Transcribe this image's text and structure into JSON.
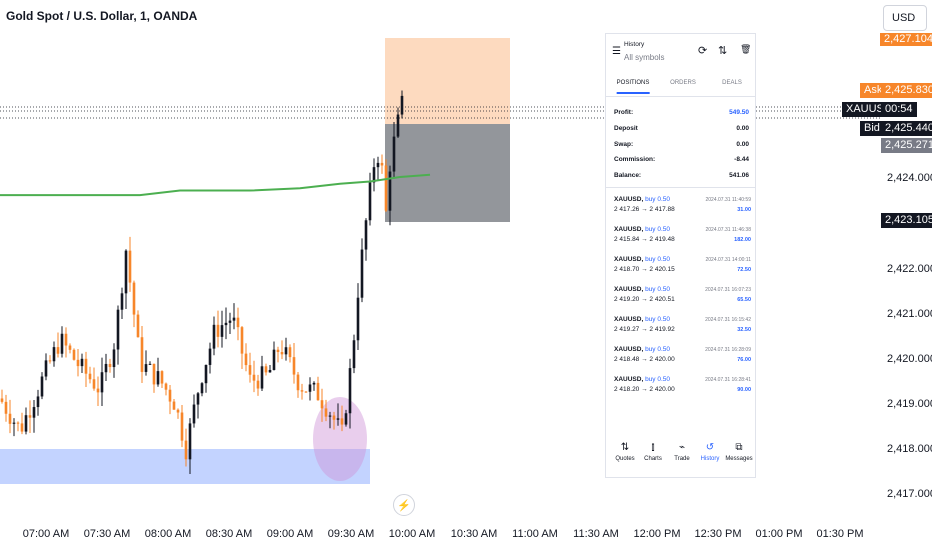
{
  "header": {
    "symbol_title": "Gold Spot / U.S. Dollar, 1, OANDA",
    "currency": "USD"
  },
  "price_axis": {
    "labels": [
      "2,424.000",
      "2,422.000",
      "2,421.000",
      "2,420.000",
      "2,419.000",
      "2,418.000",
      "2,417.000"
    ],
    "tags": {
      "top_tp": "2,427.104",
      "ask_label": "Ask",
      "ask": "2,425.830",
      "symbol": "XAUUSD",
      "countdown": "00:54",
      "bid_label": "Bid",
      "bid": "2,425.440",
      "last": "2,425.271",
      "sl": "2,423.105"
    }
  },
  "time_axis": {
    "labels": [
      "07:00 AM",
      "07:30 AM",
      "08:00 AM",
      "08:30 AM",
      "09:00 AM",
      "09:30 AM",
      "10:00 AM",
      "10:30 AM",
      "11:00 AM",
      "11:30 AM",
      "12:00 PM",
      "12:30 PM",
      "01:00 PM",
      "01:30 PM"
    ]
  },
  "colors": {
    "up": "#131722",
    "down": "#f7862a",
    "ma": "#4caf50",
    "zone": "#2962ff",
    "tp_zone": "#f7862a",
    "sl_zone": "#3b3f48"
  },
  "chart_data": {
    "type": "candlestick",
    "symbol": "Gold Spot / U.S. Dollar",
    "interval": "1",
    "y_range": [
      2416.8,
      2427.3
    ],
    "x_range": [
      "06:47 AM",
      "01:46 PM"
    ],
    "moving_average": [
      [
        0,
        2423.6
      ],
      [
        140,
        2423.6
      ],
      [
        180,
        2423.7
      ],
      [
        250,
        2423.7
      ],
      [
        300,
        2423.75
      ],
      [
        340,
        2423.85
      ],
      [
        370,
        2423.9
      ],
      [
        400,
        2424.0
      ],
      [
        430,
        2424.05
      ]
    ],
    "demand_zone": [
      2417.6,
      2418.0
    ],
    "position": {
      "entry": 2425.3,
      "take_profit": 2427.1,
      "stop_loss": 2423.1
    }
  },
  "panel": {
    "title": "History",
    "subtitle": "All symbols",
    "icons": [
      "sync-icon",
      "sort-icon",
      "trash-icon",
      "calendar-icon"
    ],
    "tabs": [
      "POSITIONS",
      "ORDERS",
      "DEALS"
    ],
    "summary": [
      {
        "label": "Profit:",
        "value": "549.50"
      },
      {
        "label": "Deposit",
        "value": "0.00"
      },
      {
        "label": "Swap:",
        "value": "0.00"
      },
      {
        "label": "Commission:",
        "value": "-8.44"
      },
      {
        "label": "Balance:",
        "value": "541.06"
      }
    ],
    "deals": [
      {
        "symbol": "XAUUSD,",
        "side": "buy 0.50",
        "time": "2024.07.31 11:40:59",
        "prices": "2 417.26 → 2 417.88",
        "profit": "31.00"
      },
      {
        "symbol": "XAUUSD,",
        "side": "buy 0.50",
        "time": "2024.07.31 11:46:38",
        "prices": "2 415.84 → 2 419.48",
        "profit": "182.00"
      },
      {
        "symbol": "XAUUSD,",
        "side": "buy 0.50",
        "time": "2024.07.31 14:00:11",
        "prices": "2 418.70 → 2 420.15",
        "profit": "72.50"
      },
      {
        "symbol": "XAUUSD,",
        "side": "buy 0.50",
        "time": "2024.07.31 16:07:23",
        "prices": "2 419.20 → 2 420.51",
        "profit": "65.50"
      },
      {
        "symbol": "XAUUSD,",
        "side": "buy 0.50",
        "time": "2024.07.31 16:15:42",
        "prices": "2 419.27 → 2 419.92",
        "profit": "32.50"
      },
      {
        "symbol": "XAUUSD,",
        "side": "buy 0.50",
        "time": "2024.07.31 16:28:09",
        "prices": "2 418.48 → 2 420.00",
        "profit": "76.00"
      },
      {
        "symbol": "XAUUSD,",
        "side": "buy 0.50",
        "time": "2024.07.31 16:28:41",
        "prices": "2 418.20 → 2 420.00",
        "profit": "90.00"
      }
    ],
    "nav": [
      {
        "label": "Quotes",
        "icon": "⇅"
      },
      {
        "label": "Charts",
        "icon": "⫾"
      },
      {
        "label": "Trade",
        "icon": "⌁"
      },
      {
        "label": "History",
        "icon": "↺"
      },
      {
        "label": "Messages",
        "icon": "⧉"
      }
    ]
  },
  "misc": {
    "bolt_icon": "⚡"
  }
}
